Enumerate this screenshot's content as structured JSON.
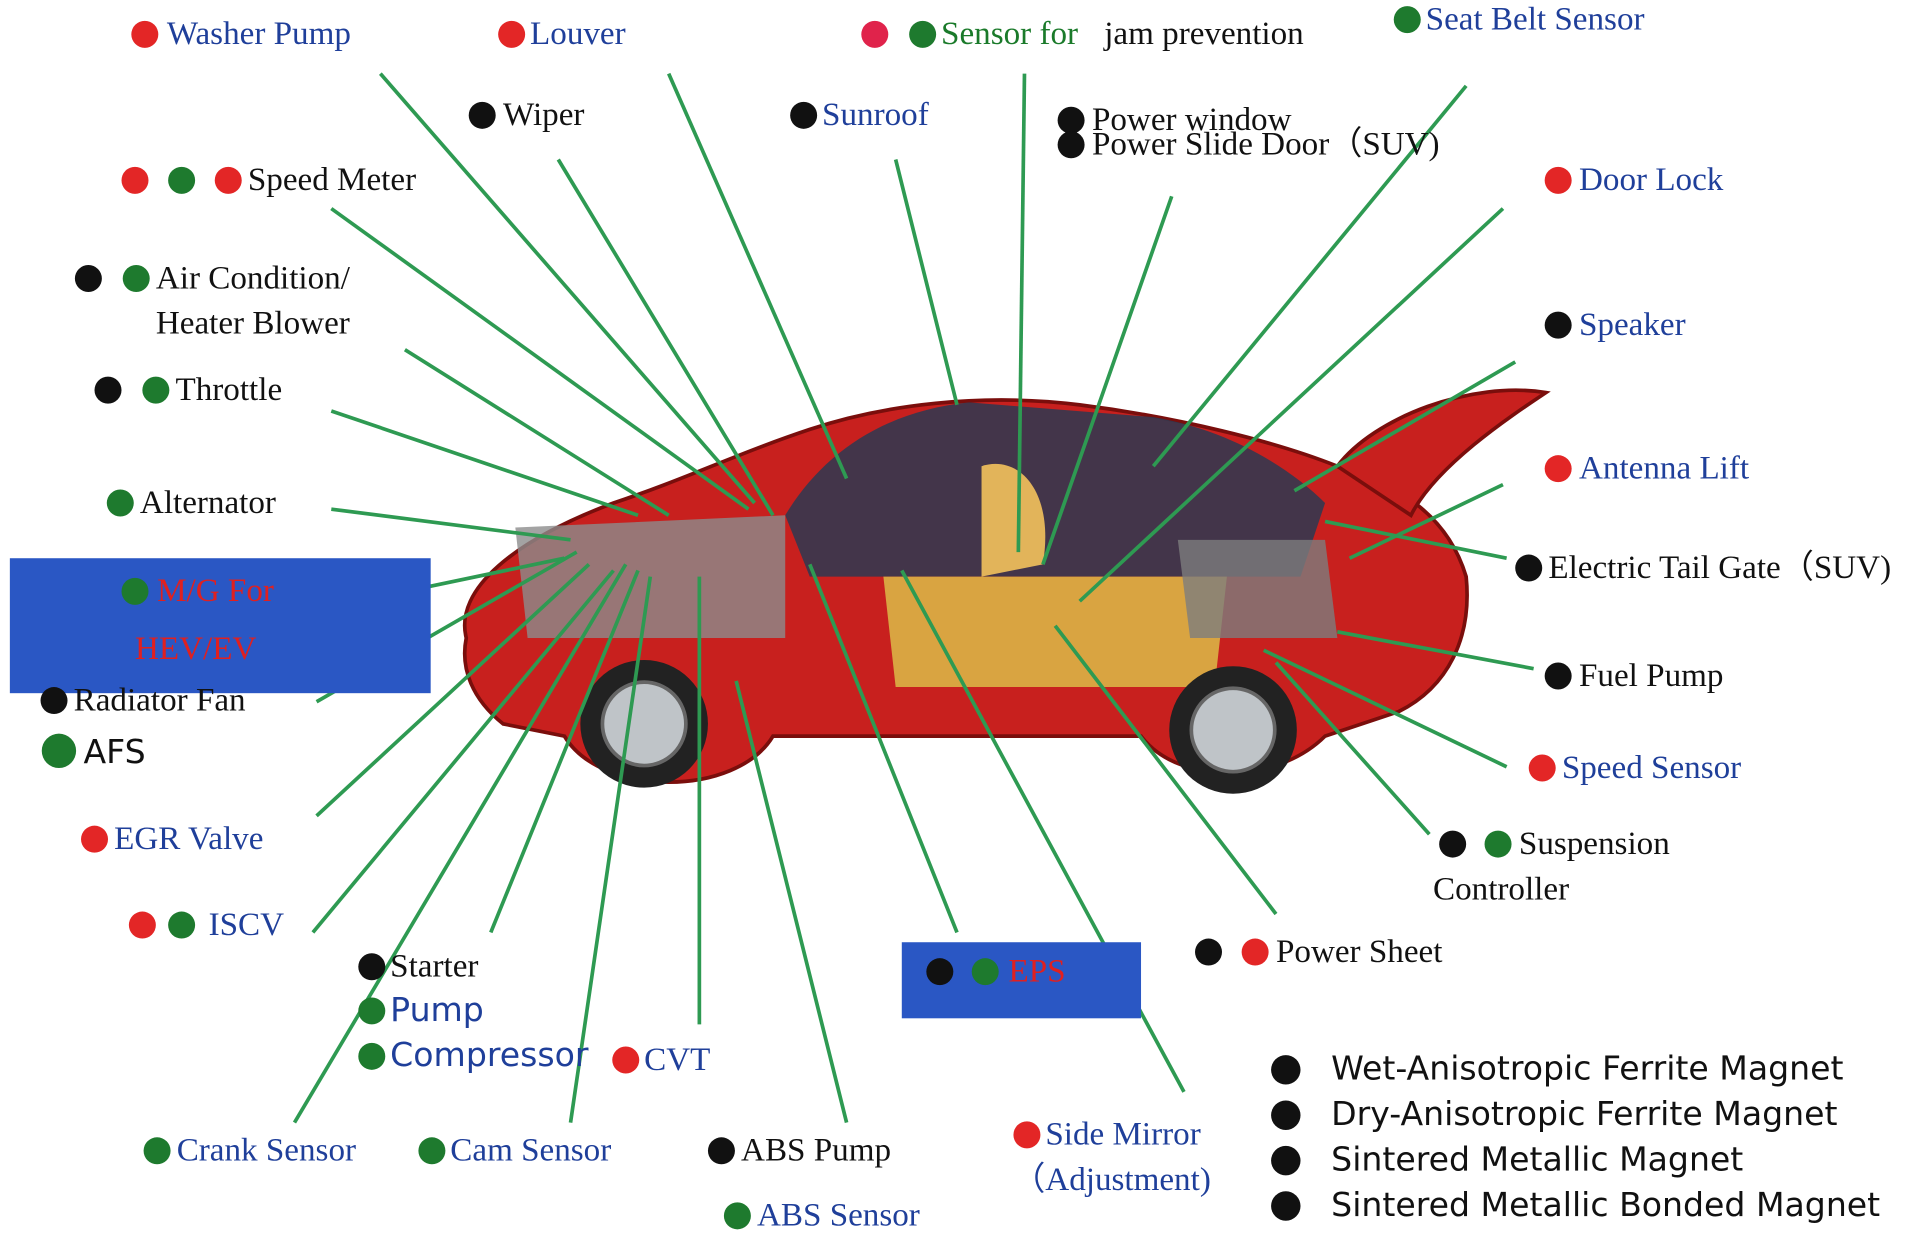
{
  "labels": [
    {
      "lines": [
        "Washer Pump"
      ]
    },
    {
      "lines": [
        "Louver"
      ]
    },
    {
      "lines": [
        "Sensor for",
        "jam prevention"
      ]
    },
    {
      "lines": [
        "Seat Belt Sensor"
      ]
    },
    {
      "lines": [
        "Wiper"
      ]
    },
    {
      "lines": [
        "Sunroof"
      ]
    },
    {
      "lines": [
        "Power window",
        "Power Slide Door（SUV)"
      ]
    },
    {
      "lines": [
        "Speed Meter"
      ]
    },
    {
      "lines": [
        "Door Lock"
      ]
    },
    {
      "lines": [
        "Air Condition/",
        "Heater Blower"
      ]
    },
    {
      "lines": [
        "Speaker"
      ]
    },
    {
      "lines": [
        "Throttle"
      ]
    },
    {
      "lines": [
        "Antenna Lift"
      ]
    },
    {
      "lines": [
        "Alternator"
      ]
    },
    {
      "lines": [
        "Electric Tail Gate（SUV)"
      ]
    },
    {
      "lines": [
        "M/G For",
        "HEV/EV"
      ]
    },
    {
      "lines": [
        "Radiator Fan"
      ]
    },
    {
      "lines": [
        "AFS"
      ]
    },
    {
      "lines": [
        "Fuel Pump"
      ]
    },
    {
      "lines": [
        "Speed Sensor"
      ]
    },
    {
      "lines": [
        "EGR Valve"
      ]
    },
    {
      "lines": [
        "Suspension",
        "Controller"
      ]
    },
    {
      "lines": [
        "ISCV"
      ]
    },
    {
      "lines": [
        "Power Sheet"
      ]
    },
    {
      "lines": [
        "EPS"
      ]
    },
    {
      "lines": [
        "Starter",
        "Pump",
        "Compressor"
      ]
    },
    {
      "lines": [
        "CVT"
      ]
    },
    {
      "lines": [
        "Crank Sensor"
      ]
    },
    {
      "lines": [
        "Cam Sensor"
      ]
    },
    {
      "lines": [
        "ABS Pump"
      ]
    },
    {
      "lines": [
        "ABS Sensor"
      ]
    },
    {
      "lines": [
        "Side Mirror",
        "（Adjustment)"
      ]
    }
  ],
  "legend": [
    "Wet-Anisotropic Ferrite Magnet",
    "Dry-Anisotropic Ferrite Magnet",
    "Sintered Metallic Magnet",
    "Sintered Metallic Bonded Magnet"
  ]
}
